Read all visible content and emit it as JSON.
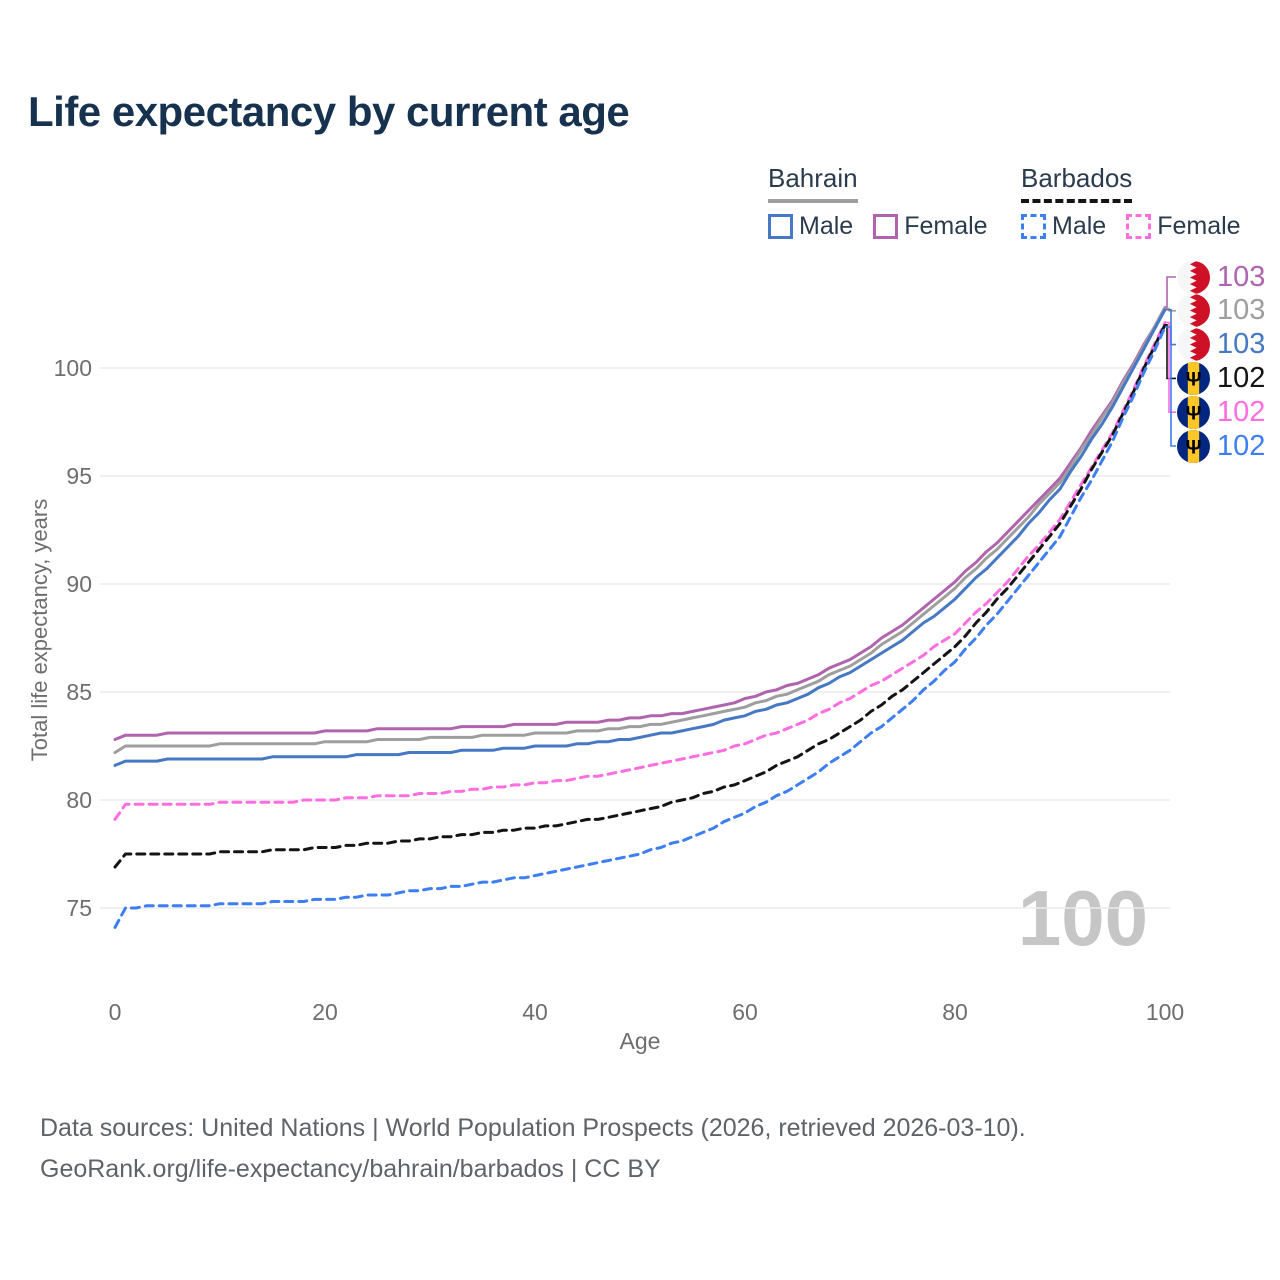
{
  "title": "Life expectancy by current age",
  "colors": {
    "title": "#17324f",
    "axis_text": "#6e6e6e",
    "gridline": "#ebebeb",
    "legend_text": "#2b3b4e",
    "watermark": "#c6c6c6",
    "bahrain_male": "#4678c4",
    "bahrain_female": "#b164ae",
    "bahrain_total": "#9e9e9e",
    "barbados_male": "#3d7ff2",
    "barbados_female": "#ff6ee0",
    "barbados_total": "#141414"
  },
  "legend": {
    "groups": [
      {
        "country": "Bahrain",
        "line_style": "solid",
        "underline_color": "#9e9e9e",
        "items": [
          {
            "label": "Male",
            "color": "#4678c4"
          },
          {
            "label": "Female",
            "color": "#b164ae"
          }
        ]
      },
      {
        "country": "Barbados",
        "line_style": "dashed",
        "underline_color": "#141414",
        "items": [
          {
            "label": "Male",
            "color": "#3d7ff2"
          },
          {
            "label": "Female",
            "color": "#ff6ee0"
          }
        ]
      }
    ]
  },
  "chart_data": {
    "type": "line",
    "title": "Life expectancy by current age",
    "xlabel": "Age",
    "ylabel": "Total life expectancy, years",
    "x_ticks": [
      0,
      20,
      40,
      60,
      80,
      100
    ],
    "y_ticks": [
      75,
      80,
      85,
      90,
      95,
      100
    ],
    "xlim": [
      0,
      100
    ],
    "ylim": [
      73.5,
      103.5
    ],
    "grid": "horizontal",
    "legend_position": "top-right",
    "watermark": "100",
    "x": [
      0,
      1,
      5,
      10,
      15,
      20,
      25,
      30,
      35,
      40,
      45,
      50,
      55,
      60,
      65,
      70,
      75,
      80,
      85,
      90,
      95,
      100
    ],
    "series": [
      {
        "id": "bahrain_female",
        "name": "Bahrain Female",
        "country": "Bahrain",
        "sex": "Female",
        "color": "#b164ae",
        "dashed": false,
        "values": [
          82.8,
          83.0,
          83.05,
          83.1,
          83.1,
          83.15,
          83.25,
          83.3,
          83.4,
          83.5,
          83.6,
          83.8,
          84.1,
          84.65,
          85.4,
          86.5,
          88.1,
          90.1,
          92.4,
          94.9,
          98.5,
          102.8
        ]
      },
      {
        "id": "bahrain_total",
        "name": "Bahrain Both sexes",
        "country": "Bahrain",
        "sex": "Both",
        "color": "#9e9e9e",
        "dashed": false,
        "values": [
          82.2,
          82.45,
          82.5,
          82.55,
          82.6,
          82.65,
          82.75,
          82.85,
          82.95,
          83.05,
          83.2,
          83.4,
          83.75,
          84.3,
          85.1,
          86.2,
          87.8,
          89.8,
          92.1,
          94.7,
          98.4,
          102.75
        ]
      },
      {
        "id": "bahrain_male",
        "name": "Bahrain Male",
        "country": "Bahrain",
        "sex": "Male",
        "color": "#4678c4",
        "dashed": false,
        "values": [
          81.6,
          81.8,
          81.85,
          81.9,
          81.95,
          82.0,
          82.1,
          82.2,
          82.3,
          82.45,
          82.6,
          82.9,
          83.3,
          83.9,
          84.7,
          85.9,
          87.4,
          89.3,
          91.7,
          94.4,
          98.2,
          102.7
        ]
      },
      {
        "id": "barbados_female",
        "name": "Barbados Female",
        "country": "Barbados",
        "sex": "Female",
        "color": "#ff6ee0",
        "dashed": true,
        "values": [
          79.1,
          79.75,
          79.8,
          79.85,
          79.9,
          80.0,
          80.15,
          80.3,
          80.5,
          80.75,
          81.05,
          81.45,
          81.95,
          82.6,
          83.5,
          84.7,
          86.1,
          87.7,
          90.1,
          93.0,
          97.0,
          102.1
        ]
      },
      {
        "id": "barbados_total",
        "name": "Barbados Both sexes",
        "country": "Barbados",
        "sex": "Both",
        "color": "#141414",
        "dashed": true,
        "values": [
          76.9,
          77.45,
          77.5,
          77.55,
          77.65,
          77.8,
          78.0,
          78.2,
          78.45,
          78.7,
          79.05,
          79.5,
          80.1,
          80.9,
          82.0,
          83.4,
          85.1,
          87.1,
          89.8,
          92.8,
          96.9,
          102.0
        ]
      },
      {
        "id": "barbados_male",
        "name": "Barbados Male",
        "country": "Barbados",
        "sex": "Male",
        "color": "#3d7ff2",
        "dashed": true,
        "values": [
          74.1,
          75.0,
          75.1,
          75.15,
          75.25,
          75.4,
          75.6,
          75.85,
          76.15,
          76.5,
          76.95,
          77.5,
          78.3,
          79.4,
          80.7,
          82.3,
          84.2,
          86.4,
          89.2,
          92.2,
          96.6,
          101.9
        ]
      }
    ]
  },
  "end_labels": [
    {
      "flag": "bahrain",
      "value": "103",
      "color": "#b164ae",
      "series": "bahrain_female"
    },
    {
      "flag": "bahrain",
      "value": "103",
      "color": "#9e9e9e",
      "series": "bahrain_total"
    },
    {
      "flag": "bahrain",
      "value": "103",
      "color": "#4678c4",
      "series": "bahrain_male"
    },
    {
      "flag": "barbados",
      "value": "102",
      "color": "#141414",
      "series": "barbados_total"
    },
    {
      "flag": "barbados",
      "value": "102",
      "color": "#ff6ee0",
      "series": "barbados_female"
    },
    {
      "flag": "barbados",
      "value": "102",
      "color": "#3d7ff2",
      "series": "barbados_male"
    }
  ],
  "footer": {
    "line1": "Data sources: United Nations | World Population Prospects (2026, retrieved 2026-03-10).",
    "line2": "GeoRank.org/life-expectancy/bahrain/barbados | CC BY"
  }
}
